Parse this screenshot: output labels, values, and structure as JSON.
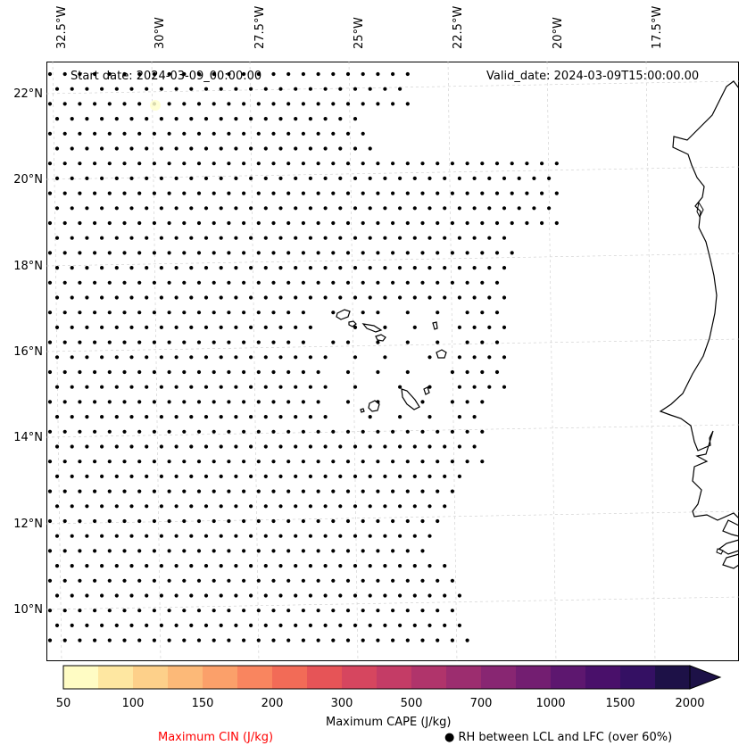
{
  "header": {
    "start_date": "Start date: 2024-03-09_00:00:00",
    "valid_date": "Valid_date: 2024-03-09T15:00:00.00"
  },
  "map": {
    "longitude_labels": [
      "32.5°W",
      "30°W",
      "27.5°W",
      "25°W",
      "22.5°W",
      "20°W",
      "17.5°W"
    ],
    "latitude_labels": [
      "22°N",
      "20°N",
      "18°N",
      "16°N",
      "14°N",
      "12°N",
      "10°N"
    ],
    "land_color": "#ffffff",
    "coastline_color": "#000000",
    "grid_color": "#cccccc",
    "dot_color": "#000000",
    "cin_marker_color": "#ffffcc"
  },
  "colorbar": {
    "tick_labels": [
      "50",
      "100",
      "150",
      "200",
      "300",
      "500",
      "700",
      "1000",
      "1500",
      "2000"
    ],
    "label": "Maximum CAPE (J/kg)",
    "colors": [
      "#fffcc4",
      "#fee7a1",
      "#fdd08a",
      "#fcb978",
      "#fba06a",
      "#f9855f",
      "#f26b57",
      "#e65457",
      "#d6465f",
      "#c43c66",
      "#b0346b",
      "#9c2d6f",
      "#882672",
      "#731e71",
      "#5d176f",
      "#49106a",
      "#341063",
      "#1d1147"
    ],
    "extend_color": "#1d1147"
  },
  "legend": {
    "cin_label": "Maximum CIN (J/kg)",
    "cin_color": "#ff0000",
    "rh_marker": "●",
    "rh_label": "RH between LCL and LFC (over 60%)"
  }
}
